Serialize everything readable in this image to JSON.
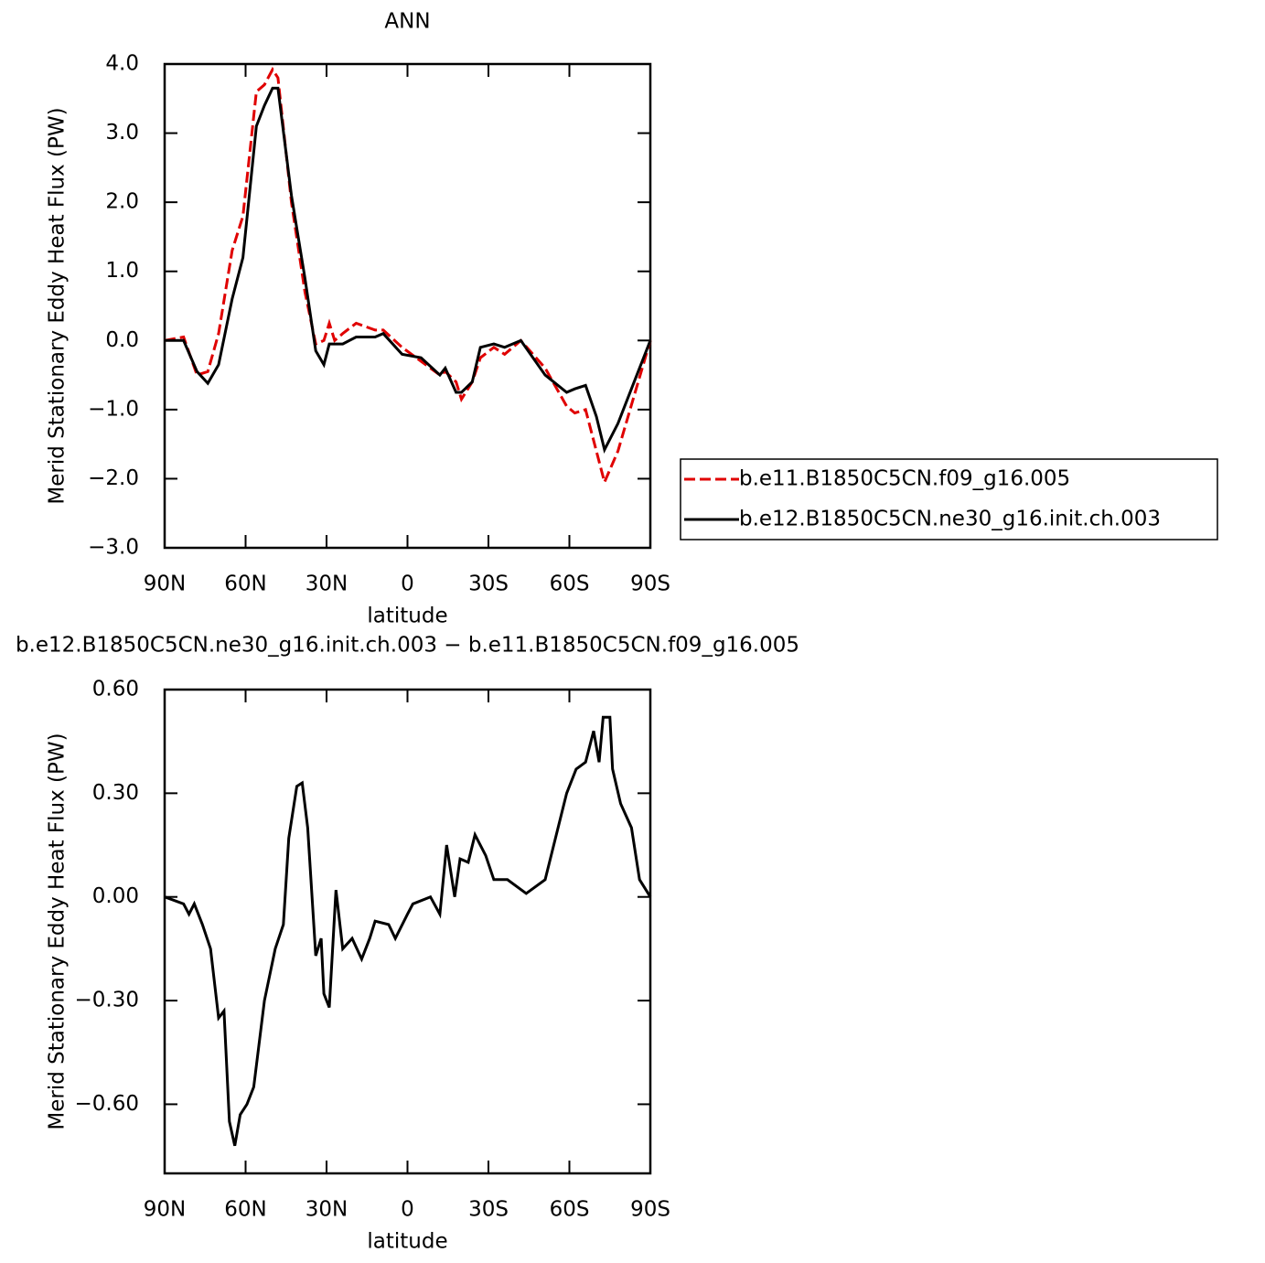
{
  "chart_data": [
    {
      "type": "line",
      "title": "ANN",
      "x_label": "latitude",
      "y_label": "Merid Stationary Eddy Heat Flux (PW)",
      "xlim": [
        90,
        -90
      ],
      "xticks": [
        {
          "value": 90,
          "label": "90N"
        },
        {
          "value": 60,
          "label": "60N"
        },
        {
          "value": 30,
          "label": "30N"
        },
        0,
        {
          "value": -30,
          "label": "30S"
        },
        {
          "value": -60,
          "label": "60S"
        },
        {
          "value": -90,
          "label": "90S"
        }
      ],
      "ylim": [
        -3,
        4
      ],
      "yticks": [
        {
          "value": 4,
          "label": "4.0"
        },
        {
          "value": 3,
          "label": "3.0"
        },
        {
          "value": 2,
          "label": "2.0"
        },
        {
          "value": 1,
          "label": "1.0"
        },
        {
          "value": 0,
          "label": "0.0"
        },
        {
          "value": -1,
          "label": "−1.0"
        },
        {
          "value": -2,
          "label": "−2.0"
        },
        {
          "value": -3,
          "label": "−3.0"
        }
      ],
      "x": [
        90,
        83,
        78,
        74,
        70,
        65,
        61,
        56,
        53,
        50,
        48,
        43,
        38,
        34,
        31,
        29,
        27,
        24,
        19,
        12,
        9,
        2,
        -5,
        -12,
        -14,
        -18,
        -20,
        -24,
        -27,
        -32,
        -36,
        -42,
        -51,
        -59,
        -62,
        -66,
        -70,
        -73,
        -78,
        -84,
        -90
      ],
      "series": [
        {
          "name": "b.e11.B1850C5CN.f09_g16.005",
          "color": "#e00000",
          "line_style": "dashed",
          "values": [
            0,
            0.05,
            -0.5,
            -0.45,
            0.1,
            1.3,
            1.8,
            3.6,
            3.7,
            3.92,
            3.8,
            2.0,
            0.7,
            -0.05,
            0.0,
            0.25,
            0.0,
            0.1,
            0.25,
            0.15,
            0.15,
            -0.1,
            -0.3,
            -0.5,
            -0.45,
            -0.6,
            -0.85,
            -0.6,
            -0.25,
            -0.1,
            -0.2,
            0.0,
            -0.4,
            -0.95,
            -1.05,
            -1.0,
            -1.6,
            -2.05,
            -1.6,
            -0.8,
            0
          ]
        },
        {
          "name": "b.e12.B1850C5CN.ne30_g16.init.ch.003",
          "color": "#000000",
          "line_style": "solid",
          "values": [
            0,
            0,
            -0.45,
            -0.62,
            -0.35,
            0.6,
            1.2,
            3.1,
            3.4,
            3.65,
            3.65,
            2.1,
            0.9,
            -0.15,
            -0.35,
            -0.05,
            -0.05,
            -0.05,
            0.05,
            0.05,
            0.1,
            -0.2,
            -0.25,
            -0.5,
            -0.4,
            -0.75,
            -0.75,
            -0.6,
            -0.1,
            -0.05,
            -0.1,
            0.0,
            -0.5,
            -0.75,
            -0.7,
            -0.65,
            -1.1,
            -1.58,
            -1.2,
            -0.6,
            0
          ]
        }
      ]
    },
    {
      "type": "line",
      "title": "b.e12.B1850C5CN.ne30_g16.init.ch.003 − b.e11.B1850C5CN.f09_g16.005",
      "x_label": "latitude",
      "y_label": "Merid Stationary Eddy Heat Flux (PW)",
      "xlim": [
        90,
        -90
      ],
      "xticks": [
        {
          "value": 90,
          "label": "90N"
        },
        {
          "value": 60,
          "label": "60N"
        },
        {
          "value": 30,
          "label": "30N"
        },
        0,
        {
          "value": -30,
          "label": "30S"
        },
        {
          "value": -60,
          "label": "60S"
        },
        {
          "value": -90,
          "label": "90S"
        }
      ],
      "ylim": [
        -0.8,
        0.6
      ],
      "yticks": [
        {
          "value": 0.6,
          "label": "0.60"
        },
        {
          "value": 0.3,
          "label": "0.30"
        },
        {
          "value": 0,
          "label": "0.00"
        },
        {
          "value": -0.3,
          "label": "−0.30"
        },
        {
          "value": -0.6,
          "label": "−0.60"
        }
      ],
      "x": [
        90,
        83,
        81,
        79,
        76,
        73,
        70,
        68,
        66,
        64,
        62,
        59.5,
        57,
        53,
        49,
        46,
        44,
        41,
        39,
        37,
        34,
        32,
        31,
        29,
        26.5,
        24,
        20.5,
        17,
        14,
        12,
        7,
        4.5,
        0,
        -2,
        -8.5,
        -12,
        -14.5,
        -17.5,
        -19.5,
        -22.5,
        -25,
        -29,
        -32,
        -37,
        -44,
        -51,
        -59,
        -62.5,
        -66,
        -69,
        -71,
        -72.5,
        -75,
        -76,
        -79,
        -83,
        -86,
        -90
      ],
      "series": [
        {
          "color": "#000000",
          "line_style": "solid",
          "values": [
            0,
            -0.02,
            -0.05,
            -0.02,
            -0.08,
            -0.15,
            -0.35,
            -0.33,
            -0.65,
            -0.72,
            -0.63,
            -0.6,
            -0.55,
            -0.3,
            -0.15,
            -0.08,
            0.17,
            0.32,
            0.33,
            0.2,
            -0.17,
            -0.12,
            -0.28,
            -0.32,
            0.02,
            -0.15,
            -0.12,
            -0.18,
            -0.12,
            -0.07,
            -0.08,
            -0.12,
            -0.05,
            -0.02,
            0.0,
            -0.05,
            0.15,
            0.0,
            0.11,
            0.1,
            0.18,
            0.12,
            0.05,
            0.05,
            0.01,
            0.05,
            0.3,
            0.37,
            0.39,
            0.48,
            0.39,
            0.52,
            0.52,
            0.37,
            0.27,
            0.2,
            0.05,
            0
          ]
        }
      ]
    }
  ]
}
